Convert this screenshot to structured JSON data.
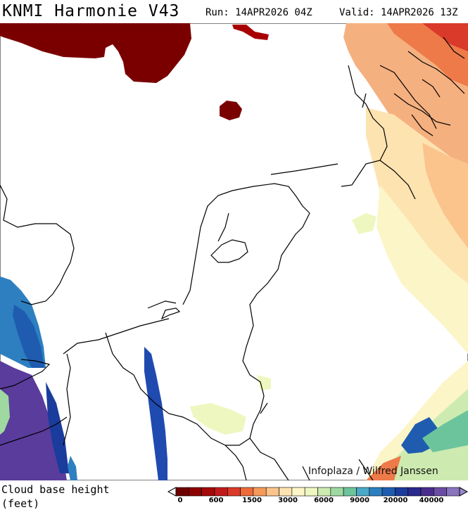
{
  "header": {
    "title": "KNMI Harmonie V43",
    "run": "Run: 14APR2026 04Z",
    "valid": "Valid: 14APR2026 13Z"
  },
  "map": {
    "credit": "Infoplaza / Wilfred Janssen"
  },
  "legend": {
    "label_line1": "Cloud base height",
    "label_line2": "(feet)",
    "colors": [
      "#6b0000",
      "#8b0000",
      "#a30a0a",
      "#c21a1a",
      "#d93a2a",
      "#ee6a3a",
      "#f59a5a",
      "#fbc48c",
      "#fde3b0",
      "#fbf5c8",
      "#eef7c0",
      "#cdebb0",
      "#9fd8a0",
      "#6cc49c",
      "#4aa8c8",
      "#2d7fc0",
      "#1f5cb0",
      "#1a3c9c",
      "#2a2a8c",
      "#4a2c8c",
      "#6a4ca4",
      "#8a74bc"
    ],
    "tick_labels": [
      "0",
      "600",
      "1500",
      "3000",
      "6000",
      "9000",
      "20000",
      "40000"
    ]
  }
}
